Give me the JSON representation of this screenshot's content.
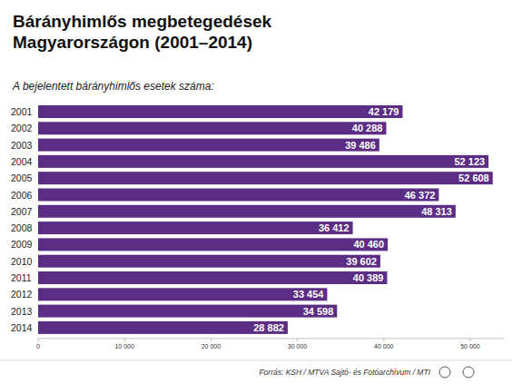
{
  "chart_data": {
    "type": "bar",
    "orientation": "horizontal",
    "title": "Bárányhimlős megbetegedések Magyarországon (2001–2014)",
    "subtitle": "A bejelentett bárányhimlős esetek száma:",
    "source": "Forrás: KSH / MTVA Sajtó- és Fotóarchívum / MTI",
    "categories": [
      "2001",
      "2002",
      "2003",
      "2004",
      "2005",
      "2006",
      "2007",
      "2008",
      "2009",
      "2010",
      "2011",
      "2012",
      "2013",
      "2014"
    ],
    "values": [
      42179,
      40288,
      39486,
      52123,
      52608,
      46372,
      48313,
      36412,
      40460,
      39602,
      40389,
      33454,
      34598,
      28882
    ],
    "value_labels": [
      "42 179",
      "40 288",
      "39 486",
      "52 123",
      "52 608",
      "46 372",
      "48 313",
      "36 412",
      "40 460",
      "39 602",
      "40 389",
      "33 454",
      "34 598",
      "28 882"
    ],
    "color": "#5c2d84",
    "data_labels": true,
    "grid": false,
    "xlim": [
      0,
      54000
    ],
    "xticks": [
      0,
      {
        "value": 10000,
        "label": "10 000"
      },
      {
        "value": 20000,
        "label": "20 000"
      },
      {
        "value": 30000,
        "label": "30 000"
      },
      {
        "value": 40000,
        "label": "40 000"
      },
      {
        "value": 50000,
        "label": "50 000"
      }
    ]
  }
}
